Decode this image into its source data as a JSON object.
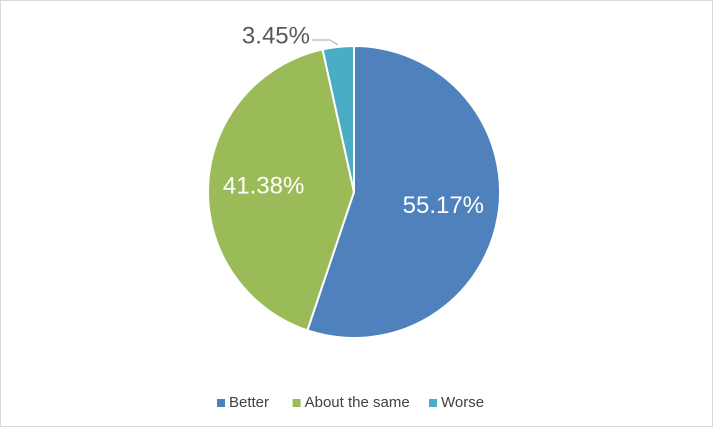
{
  "chart_data": {
    "type": "pie",
    "categories": [
      "Better",
      "About the same",
      "Worse"
    ],
    "values": [
      55.17,
      41.38,
      3.45
    ],
    "value_labels": [
      "55.17%",
      "41.38%",
      "3.45%"
    ],
    "colors": [
      "#4f81bd",
      "#9bbb59",
      "#4bacc6"
    ],
    "legend": "bottom"
  }
}
